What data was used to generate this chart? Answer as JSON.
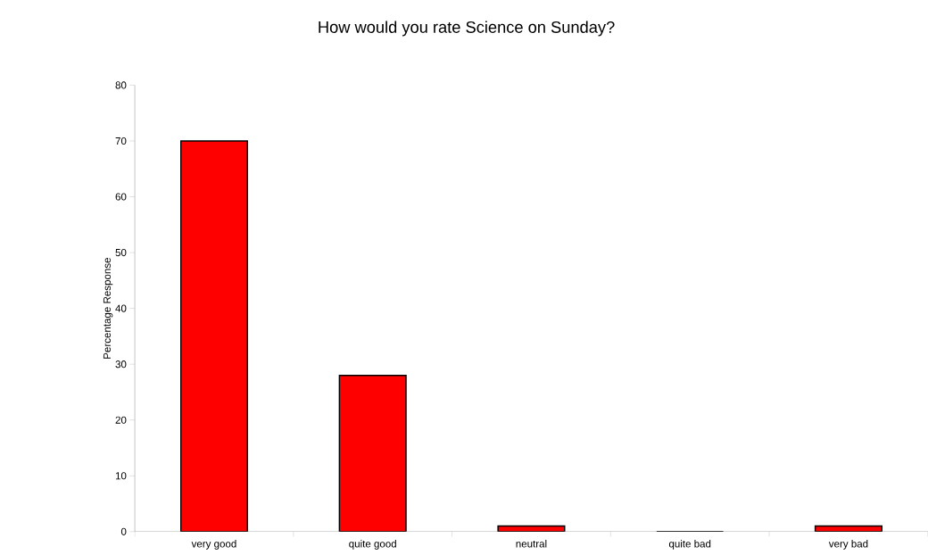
{
  "chart_data": {
    "type": "bar",
    "title": "How would you rate Science on Sunday?",
    "ylabel": "Percentage Response",
    "categories": [
      "very good",
      "quite good",
      "neutral",
      "quite bad",
      "very bad"
    ],
    "values": [
      70,
      28,
      1,
      0,
      1
    ],
    "color": "#ff0000",
    "ylim": [
      0,
      80
    ],
    "yticks": [
      0,
      10,
      20,
      30,
      40,
      50,
      60,
      70,
      80
    ]
  }
}
